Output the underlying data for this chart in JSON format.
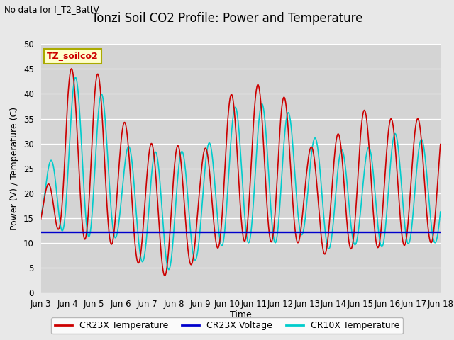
{
  "title": "Tonzi Soil CO2 Profile: Power and Temperature",
  "subtitle": "No data for f_T2_BattV",
  "ylabel": "Power (V) / Temperature (C)",
  "xlabel": "Time",
  "ylim": [
    0,
    50
  ],
  "yticks": [
    0,
    5,
    10,
    15,
    20,
    25,
    30,
    35,
    40,
    45,
    50
  ],
  "xtick_labels": [
    "Jun 3",
    "Jun 4",
    "Jun 5",
    "Jun 6",
    "Jun 7",
    "Jun 8",
    "Jun 9",
    "Jun 10",
    "Jun 11",
    "Jun 12",
    "Jun 13",
    "Jun 14",
    "Jun 15",
    "Jun 16",
    "Jun 17",
    "Jun 18"
  ],
  "xtick_positions": [
    3,
    4,
    5,
    6,
    7,
    8,
    9,
    10,
    11,
    12,
    13,
    14,
    15,
    16,
    17,
    18
  ],
  "cr23x_temp_color": "#cc0000",
  "cr23x_volt_color": "#0000cc",
  "cr10x_temp_color": "#00cccc",
  "bg_color": "#e8e8e8",
  "plot_bg_color": "#d4d4d4",
  "grid_color": "#c0c0c0",
  "legend_box_color": "#ffffcc",
  "legend_box_edge": "#aaaa00",
  "inset_label": "TZ_soilco2",
  "line_width": 1.2,
  "title_fontsize": 12,
  "axis_fontsize": 9,
  "tick_fontsize": 8.5
}
